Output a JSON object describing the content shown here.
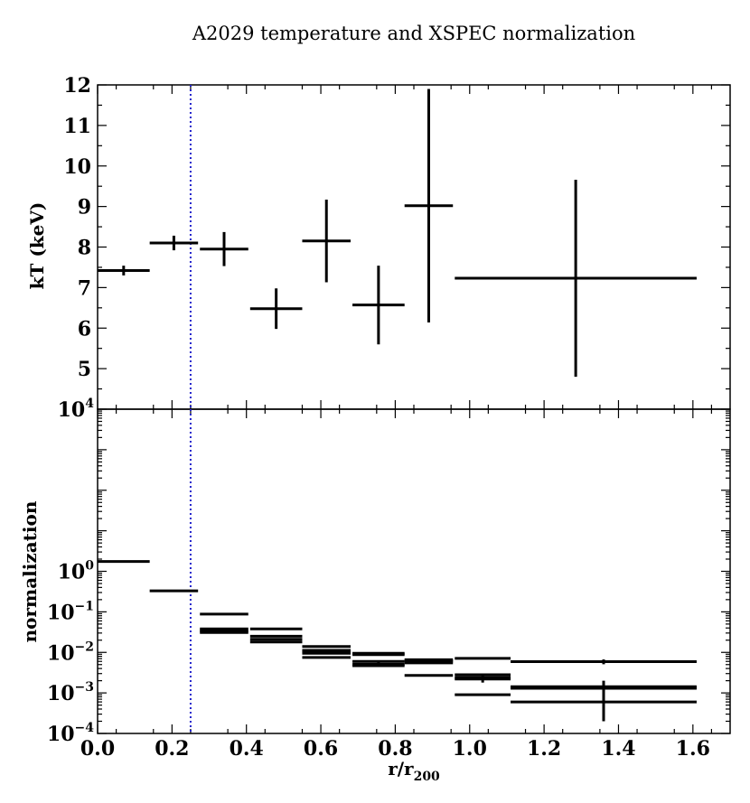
{
  "figure": {
    "title": "A2029 temperature and XSPEC normalization"
  },
  "chart_data": [
    {
      "type": "scatter",
      "panel": "top",
      "ylabel": "kT (keV)",
      "xlim": [
        0.0,
        1.7
      ],
      "ylim": [
        4,
        12
      ],
      "yticks": [
        5,
        6,
        7,
        8,
        9,
        10,
        11,
        12
      ],
      "yticklabels": [
        "5",
        "6",
        "7",
        "8",
        "9",
        "10",
        "11",
        "12"
      ],
      "grid": false,
      "vline": {
        "x": 0.25,
        "style": "dotted",
        "color": "#2222cc"
      },
      "points": [
        {
          "x": 0.07,
          "xerr": 0.07,
          "y": 7.42,
          "yerr": [
            0.12,
            0.12
          ]
        },
        {
          "x": 0.205,
          "xerr": 0.065,
          "y": 8.1,
          "yerr": [
            0.18,
            0.18
          ]
        },
        {
          "x": 0.34,
          "xerr": 0.065,
          "y": 7.95,
          "yerr": [
            0.42,
            0.42
          ]
        },
        {
          "x": 0.48,
          "xerr": 0.07,
          "y": 6.48,
          "yerr": [
            0.5,
            0.5
          ]
        },
        {
          "x": 0.615,
          "xerr": 0.065,
          "y": 8.15,
          "yerr": [
            1.02,
            1.02
          ]
        },
        {
          "x": 0.755,
          "xerr": 0.07,
          "y": 6.57,
          "yerr": [
            0.97,
            0.97
          ]
        },
        {
          "x": 0.89,
          "xerr": 0.065,
          "y": 9.02,
          "yerr": [
            2.88,
            2.88
          ]
        },
        {
          "x": 1.285,
          "xerr": 0.325,
          "y": 7.23,
          "yerr": [
            2.43,
            2.43
          ]
        }
      ]
    },
    {
      "type": "scatter",
      "panel": "bottom",
      "xlabel": "r/r",
      "xlabel_sub": "200",
      "ylabel": "normalization",
      "xlim": [
        0.0,
        1.7
      ],
      "ylim": [
        0.0001,
        10000
      ],
      "yscale": "log",
      "ytick_exponents": [
        -4,
        -3,
        -2,
        -1,
        0,
        4
      ],
      "xticks": [
        0.0,
        0.2,
        0.4,
        0.6,
        0.8,
        1.0,
        1.2,
        1.4,
        1.6
      ],
      "xticklabels": [
        "0.0",
        "0.2",
        "0.4",
        "0.6",
        "0.8",
        "1.0",
        "1.2",
        "1.4",
        "1.6"
      ],
      "grid": false,
      "vline": {
        "x": 0.25,
        "style": "dotted",
        "color": "#2222cc"
      },
      "points": [
        {
          "x": 0.07,
          "xerr": 0.07,
          "y": 1.75
        },
        {
          "x": 0.205,
          "xerr": 0.065,
          "y": 0.33
        },
        {
          "x": 0.34,
          "xerr": 0.065,
          "y": 0.088
        },
        {
          "x": 0.34,
          "xerr": 0.065,
          "y": 0.038
        },
        {
          "x": 0.34,
          "xerr": 0.065,
          "y": 0.034,
          "yerr": [
            0.003,
            0.003
          ]
        },
        {
          "x": 0.34,
          "xerr": 0.065,
          "y": 0.031
        },
        {
          "x": 0.48,
          "xerr": 0.07,
          "y": 0.038
        },
        {
          "x": 0.48,
          "xerr": 0.07,
          "y": 0.025
        },
        {
          "x": 0.48,
          "xerr": 0.07,
          "y": 0.021
        },
        {
          "x": 0.48,
          "xerr": 0.07,
          "y": 0.018
        },
        {
          "x": 0.615,
          "xerr": 0.065,
          "y": 0.014
        },
        {
          "x": 0.615,
          "xerr": 0.065,
          "y": 0.0112
        },
        {
          "x": 0.615,
          "xerr": 0.065,
          "y": 0.0103
        },
        {
          "x": 0.615,
          "xerr": 0.065,
          "y": 0.0095
        },
        {
          "x": 0.615,
          "xerr": 0.065,
          "y": 0.0075
        },
        {
          "x": 0.755,
          "xerr": 0.07,
          "y": 0.0095
        },
        {
          "x": 0.755,
          "xerr": 0.07,
          "y": 0.0088
        },
        {
          "x": 0.755,
          "xerr": 0.07,
          "y": 0.006
        },
        {
          "x": 0.755,
          "xerr": 0.07,
          "y": 0.0051,
          "yerr": [
            0.0006,
            0.0006
          ]
        },
        {
          "x": 0.755,
          "xerr": 0.07,
          "y": 0.0047
        },
        {
          "x": 0.89,
          "xerr": 0.065,
          "y": 0.0066
        },
        {
          "x": 0.89,
          "xerr": 0.065,
          "y": 0.0061
        },
        {
          "x": 0.89,
          "xerr": 0.065,
          "y": 0.0055
        },
        {
          "x": 0.89,
          "xerr": 0.065,
          "y": 0.0027
        },
        {
          "x": 1.035,
          "xerr": 0.075,
          "y": 0.0071
        },
        {
          "x": 1.035,
          "xerr": 0.075,
          "y": 0.0028
        },
        {
          "x": 1.035,
          "xerr": 0.075,
          "y": 0.0024,
          "yerr": [
            0.0006,
            0.0006
          ]
        },
        {
          "x": 1.035,
          "xerr": 0.075,
          "y": 0.0022
        },
        {
          "x": 1.035,
          "xerr": 0.075,
          "y": 0.0009
        },
        {
          "x": 1.36,
          "xerr": 0.25,
          "y": 0.0059,
          "yerr": [
            0.0008,
            0.0008
          ]
        },
        {
          "x": 1.36,
          "xerr": 0.25,
          "y": 0.00142
        },
        {
          "x": 1.36,
          "xerr": 0.25,
          "y": 0.00135
        },
        {
          "x": 1.36,
          "xerr": 0.25,
          "y": 0.0013
        },
        {
          "x": 1.36,
          "xerr": 0.25,
          "y": 0.0006,
          "yerr": [
            0.0004,
            0.0014
          ]
        }
      ]
    }
  ]
}
